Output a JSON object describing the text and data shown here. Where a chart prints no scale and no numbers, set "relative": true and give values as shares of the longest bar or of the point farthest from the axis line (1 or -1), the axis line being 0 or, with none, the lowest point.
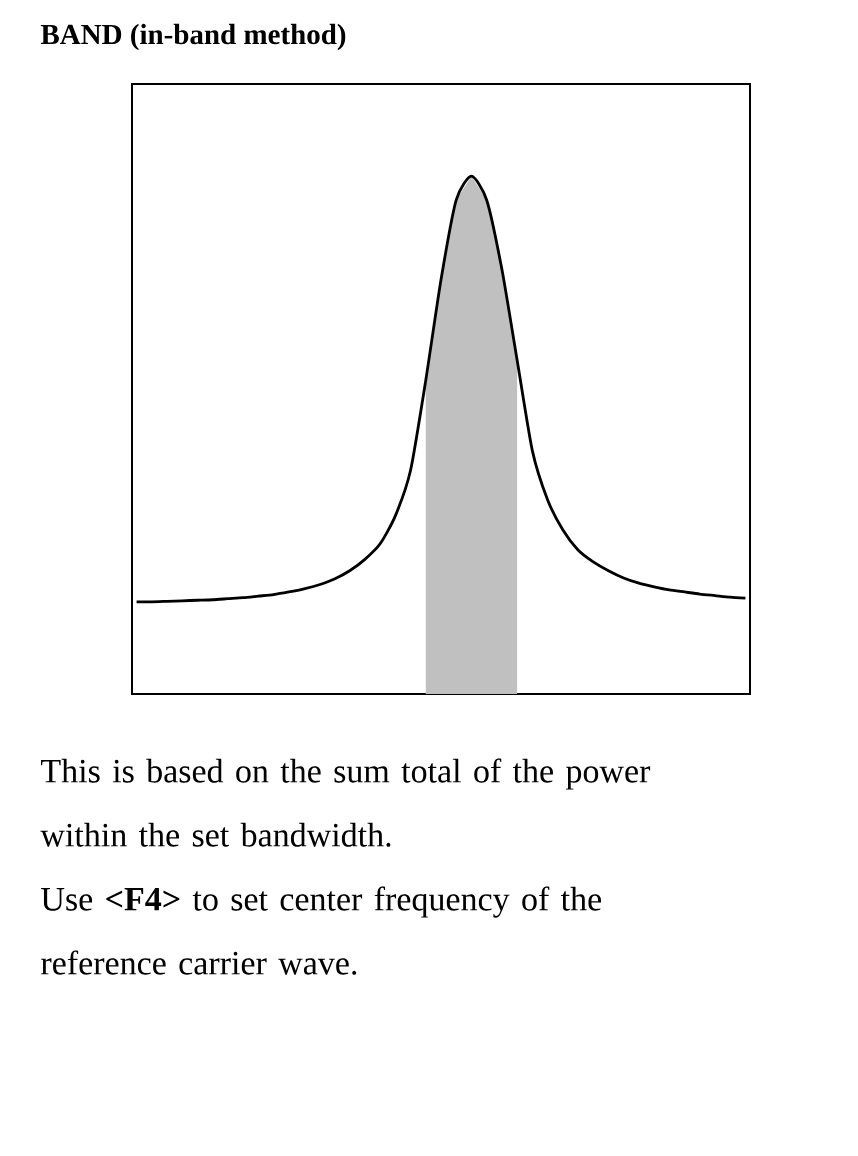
{
  "chart_data": {
    "type": "line",
    "title": "BAND (in-band method)",
    "relative": true,
    "categories": [
      null,
      null,
      null,
      null,
      null,
      null,
      null,
      null,
      null,
      null,
      null,
      null,
      null,
      null,
      null,
      null,
      null,
      null,
      null,
      null,
      null,
      null,
      null,
      null,
      null,
      null,
      null,
      null,
      null,
      null,
      null,
      null,
      null,
      null,
      null,
      null,
      null,
      null,
      null,
      null,
      null
    ],
    "series": [
      {
        "color": "#000000",
        "values": [
          0.178,
          0.178,
          0.179,
          0.18,
          0.181,
          0.182,
          0.184,
          0.186,
          0.189,
          0.192,
          0.197,
          0.203,
          0.211,
          0.222,
          0.238,
          0.26,
          0.29,
          0.344,
          0.432,
          0.606,
          0.8,
          0.954,
          1,
          0.954,
          0.82,
          0.645,
          0.47,
          0.375,
          0.317,
          0.278,
          0.255,
          0.238,
          0.224,
          0.214,
          0.207,
          0.201,
          0.197,
          0.193,
          0.19,
          0.187,
          0.185
        ]
      },
      {
        "type": "area",
        "color": "#c0c0c0",
        "values": [
          null,
          null,
          null,
          null,
          null,
          null,
          null,
          null,
          null,
          null,
          null,
          null,
          null,
          null,
          null,
          null,
          null,
          null,
          null,
          0.606,
          0.8,
          0.954,
          1,
          0.954,
          0.82,
          0.645,
          null,
          null,
          null,
          null,
          null,
          null,
          null,
          null,
          null,
          null,
          null,
          null,
          null,
          null,
          null
        ]
      }
    ],
    "annotations": [
      "This is based on the sum total of the power within the set bandwidth.",
      "Use **<F4>** to set center frequency of the reference carrier wave."
    ]
  }
}
